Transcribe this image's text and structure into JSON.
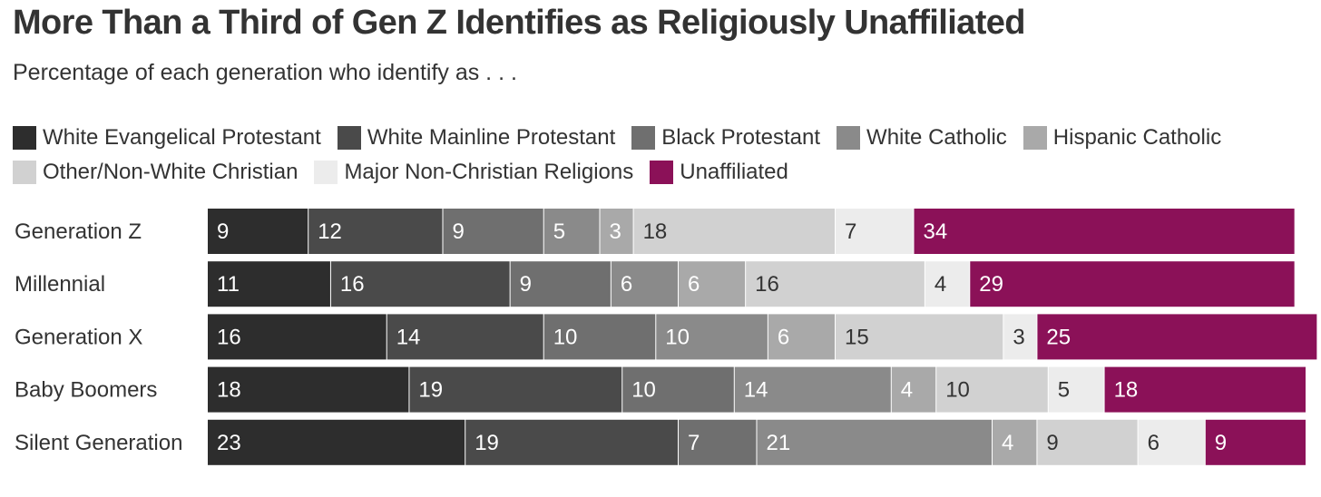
{
  "title": "More Than a Third of Gen Z Identifies as Religiously Unaffiliated",
  "subtitle": "Percentage of each generation who identify as . . .",
  "chart_data": {
    "type": "bar",
    "orientation": "horizontal",
    "stacked": true,
    "title": "More Than a Third of Gen Z Identifies as Religiously Unaffiliated",
    "subtitle": "Percentage of each generation who identify as . . .",
    "legend_position": "top",
    "grid": false,
    "categories": [
      "Generation Z",
      "Millennial",
      "Generation X",
      "Baby Boomers",
      "Silent Generation"
    ],
    "series": [
      {
        "name": "White Evangelical Protestant",
        "color": "#2d2d2d",
        "label_color": "#ffffff",
        "values": [
          9,
          11,
          16,
          18,
          23
        ]
      },
      {
        "name": "White Mainline Protestant",
        "color": "#4a4a4a",
        "label_color": "#ffffff",
        "values": [
          12,
          16,
          14,
          19,
          19
        ]
      },
      {
        "name": "Black Protestant",
        "color": "#6f6f6f",
        "label_color": "#ffffff",
        "values": [
          9,
          9,
          10,
          10,
          7
        ]
      },
      {
        "name": "White Catholic",
        "color": "#8a8a8a",
        "label_color": "#ffffff",
        "values": [
          5,
          6,
          10,
          14,
          21
        ]
      },
      {
        "name": "Hispanic Catholic",
        "color": "#a9a9a9",
        "label_color": "#ffffff",
        "values": [
          3,
          6,
          6,
          4,
          4
        ]
      },
      {
        "name": "Other/Non-White Christian",
        "color": "#d1d1d1",
        "label_color": "#333333",
        "values": [
          18,
          16,
          15,
          10,
          9
        ]
      },
      {
        "name": "Major Non-Christian Religions",
        "color": "#ececec",
        "label_color": "#333333",
        "values": [
          7,
          4,
          3,
          5,
          6
        ]
      },
      {
        "name": "Unaffiliated",
        "color": "#8b1158",
        "label_color": "#ffffff",
        "values": [
          34,
          29,
          25,
          18,
          9
        ]
      }
    ]
  }
}
